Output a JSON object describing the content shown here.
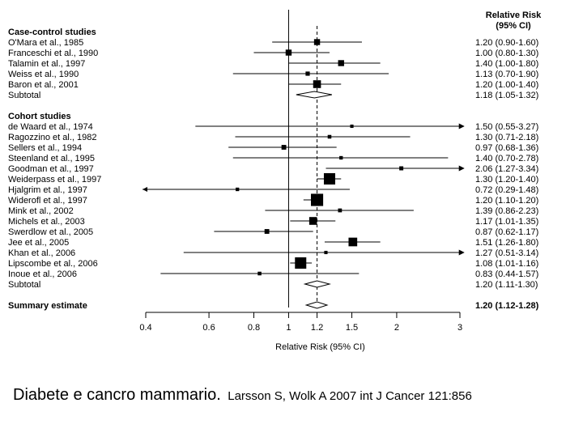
{
  "chart_data": {
    "type": "forest",
    "title": "Relative Risk\n(95% CI)",
    "xlabel": "Relative Risk (95% CI)",
    "xscale": "log",
    "xlim": [
      0.4,
      3
    ],
    "xticks": [
      0.4,
      0.6,
      0.8,
      1,
      1.2,
      1.5,
      2,
      3
    ],
    "reference_line": 1,
    "summary_line": 1.2,
    "header_ci": "Relative Risk\n(95% CI)",
    "rows": [
      {
        "kind": "header",
        "label": "Case-control studies"
      },
      {
        "kind": "study",
        "label": "O'Mara et al., 1985",
        "rr": 1.2,
        "lo": 0.9,
        "hi": 1.6,
        "ci": "1.20 (0.90-1.60)",
        "weight": 2
      },
      {
        "kind": "study",
        "label": "Franceschi et al., 1990",
        "rr": 1.0,
        "lo": 0.8,
        "hi": 1.3,
        "ci": "1.00 (0.80-1.30)",
        "weight": 2
      },
      {
        "kind": "study",
        "label": "Talamin et al., 1997",
        "rr": 1.4,
        "lo": 1.0,
        "hi": 1.8,
        "ci": "1.40 (1.00-1.80)",
        "weight": 2
      },
      {
        "kind": "study",
        "label": "Weiss et al., 1990",
        "rr": 1.13,
        "lo": 0.7,
        "hi": 1.9,
        "ci": "1.13 (0.70-1.90)",
        "weight": 1
      },
      {
        "kind": "study",
        "label": "Baron et al., 2001",
        "rr": 1.2,
        "lo": 1.0,
        "hi": 1.4,
        "ci": "1.20 (1.00-1.40)",
        "weight": 3
      },
      {
        "kind": "subtotal",
        "label": "Subtotal",
        "rr": 1.18,
        "lo": 1.05,
        "hi": 1.32,
        "ci": "1.18 (1.05-1.32)"
      },
      {
        "kind": "header",
        "label": "Cohort studies"
      },
      {
        "kind": "study",
        "label": "de Waard et al., 1974",
        "rr": 1.5,
        "lo": 0.55,
        "hi": 3.27,
        "ci": "1.50 (0.55-3.27)",
        "weight": 0.5
      },
      {
        "kind": "study",
        "label": "Ragozzino et al., 1982",
        "rr": 1.3,
        "lo": 0.71,
        "hi": 2.18,
        "ci": "1.30 (0.71-2.18)",
        "weight": 0.7
      },
      {
        "kind": "study",
        "label": "Sellers et al., 1994",
        "rr": 0.97,
        "lo": 0.68,
        "hi": 1.36,
        "ci": "0.97 (0.68-1.36)",
        "weight": 1.3
      },
      {
        "kind": "study",
        "label": "Steenland et al., 1995",
        "rr": 1.4,
        "lo": 0.7,
        "hi": 2.78,
        "ci": "1.40 (0.70-2.78)",
        "weight": 0.6
      },
      {
        "kind": "study",
        "label": "Goodman et al., 1997",
        "rr": 2.06,
        "lo": 1.27,
        "hi": 3.34,
        "ci": "2.06 (1.27-3.34)",
        "weight": 0.9
      },
      {
        "kind": "study",
        "label": "Weiderpass et al., 1997",
        "rr": 1.3,
        "lo": 1.2,
        "hi": 1.4,
        "ci": "1.30 (1.20-1.40)",
        "weight": 5
      },
      {
        "kind": "study",
        "label": "Hjalgrim et al., 1997",
        "rr": 0.72,
        "lo": 0.29,
        "hi": 1.48,
        "ci": "0.72 (0.29-1.48)",
        "weight": 0.6
      },
      {
        "kind": "study",
        "label": "Widerofl et al., 1997",
        "rr": 1.2,
        "lo": 1.1,
        "hi": 1.2,
        "ci": "1.20 (1.10-1.20)",
        "weight": 5.5
      },
      {
        "kind": "study",
        "label": "Mink et al., 2002",
        "rr": 1.39,
        "lo": 0.86,
        "hi": 2.23,
        "ci": "1.39 (0.86-2.23)",
        "weight": 0.8
      },
      {
        "kind": "study",
        "label": "Michels et al., 2003",
        "rr": 1.17,
        "lo": 1.01,
        "hi": 1.35,
        "ci": "1.17 (1.01-1.35)",
        "weight": 3
      },
      {
        "kind": "study",
        "label": "Swerdlow et al., 2005",
        "rr": 0.87,
        "lo": 0.62,
        "hi": 1.17,
        "ci": "0.87 (0.62-1.17)",
        "weight": 1.3
      },
      {
        "kind": "study",
        "label": "Jee et al., 2005",
        "rr": 1.51,
        "lo": 1.26,
        "hi": 1.8,
        "ci": "1.51 (1.26-1.80)",
        "weight": 3.5
      },
      {
        "kind": "study",
        "label": "Khan et al., 2006",
        "rr": 1.27,
        "lo": 0.51,
        "hi": 3.14,
        "ci": "1.27 (0.51-3.14)",
        "weight": 0.5
      },
      {
        "kind": "study",
        "label": "Lipscombe et al., 2006",
        "rr": 1.08,
        "lo": 1.01,
        "hi": 1.16,
        "ci": "1.08 (1.01-1.16)",
        "weight": 5
      },
      {
        "kind": "study",
        "label": "Inoue et al., 2006",
        "rr": 0.83,
        "lo": 0.44,
        "hi": 1.57,
        "ci": "0.83 (0.44-1.57)",
        "weight": 0.7
      },
      {
        "kind": "subtotal",
        "label": "Subtotal",
        "rr": 1.2,
        "lo": 1.11,
        "hi": 1.3,
        "ci": "1.20 (1.11-1.30)"
      },
      {
        "kind": "summary",
        "label": "Summary estimate",
        "rr": 1.2,
        "lo": 1.12,
        "hi": 1.28,
        "ci": "1.20 (1.12-1.28)"
      }
    ]
  },
  "caption": {
    "main": "Diabete e cancro mammario.",
    "reference": "Larsson S, Wolk A 2007 int J Cancer 121:856"
  }
}
